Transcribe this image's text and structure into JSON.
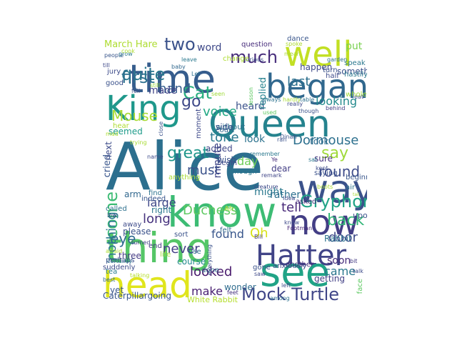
{
  "word_cloud": {
    "background": "#ffffff",
    "palette": "viridis",
    "words": [
      {
        "text": "Alice",
        "color": "#2c6f8e"
      },
      {
        "text": "know",
        "color": "#3dbc74"
      },
      {
        "text": "thing",
        "color": "#55c667"
      },
      {
        "text": "Queen",
        "color": "#25838e"
      },
      {
        "text": "head",
        "color": "#e0e51c"
      },
      {
        "text": "time",
        "color": "#365d8d"
      },
      {
        "text": "way",
        "color": "#3b528b"
      },
      {
        "text": "now",
        "color": "#433e85"
      },
      {
        "text": "Hatter",
        "color": "#414487"
      },
      {
        "text": "see",
        "color": "#20a386"
      },
      {
        "text": "well",
        "color": "#c2df23"
      },
      {
        "text": "King",
        "color": "#1f988b"
      },
      {
        "text": "began",
        "color": "#31688e"
      },
      {
        "text": "Mock Turtle",
        "color": "#404688"
      },
      {
        "text": "Gryphon",
        "color": "#20a386"
      },
      {
        "text": "quite",
        "color": "#2a788e"
      },
      {
        "text": "much",
        "color": "#472d7b"
      },
      {
        "text": "first",
        "color": "#2d708e"
      },
      {
        "text": "two",
        "color": "#3b528b"
      },
      {
        "text": "Cat",
        "color": "#29af7f"
      },
      {
        "text": "go",
        "color": "#3e4989"
      },
      {
        "text": "voice",
        "color": "#22a884"
      },
      {
        "text": "Dormouse",
        "color": "#2d708e"
      },
      {
        "text": "say",
        "color": "#9fda3a"
      },
      {
        "text": "round",
        "color": "#3e4c8a"
      },
      {
        "text": "Mouse",
        "color": "#a8db34"
      },
      {
        "text": "tone",
        "color": "#2a788e"
      },
      {
        "text": "come",
        "color": "#3dbc74"
      },
      {
        "text": "great",
        "color": "#1f968b"
      },
      {
        "text": "Duchess",
        "color": "#5ec962"
      },
      {
        "text": "tell",
        "color": "#472878"
      },
      {
        "text": "back",
        "color": "#35b779"
      },
      {
        "text": "looked",
        "color": "#481a6c"
      },
      {
        "text": "never",
        "color": "#433e85"
      },
      {
        "text": "door",
        "color": "#3e4a89"
      },
      {
        "text": "eye",
        "color": "#2f6c8e"
      },
      {
        "text": "long",
        "color": "#46327e"
      },
      {
        "text": "Oh",
        "color": "#d8e219"
      },
      {
        "text": "found",
        "color": "#39568c"
      },
      {
        "text": "make",
        "color": "#481f71"
      },
      {
        "text": "came",
        "color": "#2a788e"
      },
      {
        "text": "must",
        "color": "#3b528b"
      },
      {
        "text": "nothing",
        "color": "#2a788e"
      },
      {
        "text": "large",
        "color": "#3f4788"
      },
      {
        "text": "hand",
        "color": "#365d8d"
      },
      {
        "text": "last",
        "color": "#2d708e"
      },
      {
        "text": "looking",
        "color": "#238a8d"
      },
      {
        "text": "March Hare",
        "color": "#addc30"
      },
      {
        "text": "word",
        "color": "#3e4989"
      },
      {
        "text": "put",
        "color": "#7ad151"
      },
      {
        "text": "made",
        "color": "#414487"
      },
      {
        "text": "heard",
        "color": "#3b528b"
      },
      {
        "text": "replied",
        "color": "#26828e"
      },
      {
        "text": "minute",
        "color": "#404688"
      },
      {
        "text": "day",
        "color": "#6ece58"
      },
      {
        "text": "look",
        "color": "#2c728e"
      },
      {
        "text": "might",
        "color": "#2a788e"
      },
      {
        "text": "seemed",
        "color": "#1e9b8a"
      },
      {
        "text": "Caterpillargoing",
        "color": "#39568c"
      },
      {
        "text": "White Rabbit",
        "color": "#b5de2b"
      },
      {
        "text": "getting",
        "color": "#424086"
      },
      {
        "text": "Rabbit",
        "color": "#2c728e"
      },
      {
        "text": "course",
        "color": "#23898e"
      },
      {
        "text": "right",
        "color": "#2a788e"
      },
      {
        "text": "please",
        "color": "#3b528b"
      },
      {
        "text": "added",
        "color": "#404688"
      },
      {
        "text": "rather",
        "color": "#2d708e"
      },
      {
        "text": "Bill",
        "color": "#443a83"
      },
      {
        "text": "upon",
        "color": "#3b528b"
      },
      {
        "text": "without",
        "color": "#2c728e"
      },
      {
        "text": "took",
        "color": "#2f6c8e"
      },
      {
        "text": "sure",
        "color": "#46337e"
      },
      {
        "text": "soon",
        "color": "#472d7b"
      },
      {
        "text": "cried",
        "color": "#39568c"
      },
      {
        "text": "next",
        "color": "#3e4c8a"
      },
      {
        "text": "arm",
        "color": "#31688e"
      },
      {
        "text": "wish",
        "color": "#3b528b"
      },
      {
        "text": "dear",
        "color": "#433e85"
      },
      {
        "text": "begin",
        "color": "#3e4989"
      },
      {
        "text": "enough",
        "color": "#2a788e"
      },
      {
        "text": "sort",
        "color": "#3b528b"
      },
      {
        "text": "felt",
        "color": "#31688e"
      },
      {
        "text": "three",
        "color": "#443a83"
      },
      {
        "text": "suddenly",
        "color": "#3e4c8a"
      },
      {
        "text": "Footman",
        "color": "#472878"
      },
      {
        "text": "done",
        "color": "#31688e"
      },
      {
        "text": "tea",
        "color": "#287c8e"
      },
      {
        "text": "yet",
        "color": "#39568c"
      },
      {
        "text": "another",
        "color": "#472d7b"
      },
      {
        "text": "anxiously",
        "color": "#3e4989"
      },
      {
        "text": "gone",
        "color": "#3b528b"
      },
      {
        "text": "wonder",
        "color": "#2f6c8e"
      },
      {
        "text": "feet",
        "color": "#46337e"
      },
      {
        "text": "among",
        "color": "#2c728e"
      },
      {
        "text": "face",
        "color": "#5ec962"
      },
      {
        "text": "left",
        "color": "#3e4c8a"
      },
      {
        "text": "talking",
        "color": "#b5de2b"
      },
      {
        "text": "certainly",
        "color": "#2a788e"
      },
      {
        "text": "best",
        "color": "#31688e"
      },
      {
        "text": "turned",
        "color": "#414487"
      },
      {
        "text": "perhaps",
        "color": "#3b528b"
      },
      {
        "text": "called",
        "color": "#2d708e"
      },
      {
        "text": "low",
        "color": "#3e4989"
      },
      {
        "text": "indeed",
        "color": "#39568c"
      },
      {
        "text": "find",
        "color": "#2c728e"
      },
      {
        "text": "anything",
        "color": "#a8db34"
      },
      {
        "text": "away",
        "color": "#3e4c8a"
      },
      {
        "text": "end",
        "color": "#443a83"
      },
      {
        "text": "life",
        "color": "#9fda3a"
      },
      {
        "text": "use",
        "color": "#2d708e"
      },
      {
        "text": "everything",
        "color": "#3b528b"
      },
      {
        "text": "asked",
        "color": "#472d7b"
      },
      {
        "text": "Idea",
        "color": "#3e4989"
      },
      {
        "text": "sat",
        "color": "#2a788e"
      },
      {
        "text": "kept",
        "color": "#3e4c8a"
      },
      {
        "text": "saying",
        "color": "#3b528b"
      },
      {
        "text": "beginning",
        "color": "#39568c"
      },
      {
        "text": "air",
        "color": "#2c728e"
      },
      {
        "text": "tail",
        "color": "#a8db34"
      },
      {
        "text": "remember",
        "color": "#2a788e"
      },
      {
        "text": "remark",
        "color": "#404688"
      },
      {
        "text": "side",
        "color": "#3b528b"
      },
      {
        "text": "court",
        "color": "#31688e"
      },
      {
        "text": "moment",
        "color": "#3e4989"
      },
      {
        "text": "mean",
        "color": "#addc30"
      },
      {
        "text": "turn",
        "color": "#3b528b"
      },
      {
        "text": "speak",
        "color": "#2a788e"
      },
      {
        "text": "eat",
        "color": "#3e4c8a"
      },
      {
        "text": "whole",
        "color": "#9fda3a"
      },
      {
        "text": "behind",
        "color": "#433e85"
      },
      {
        "text": "though",
        "color": "#3b528b"
      },
      {
        "text": "really",
        "color": "#3e4989"
      },
      {
        "text": "table",
        "color": "#2d708e"
      },
      {
        "text": "hardly",
        "color": "#a8db34"
      },
      {
        "text": "something",
        "color": "#3b528b"
      },
      {
        "text": "half",
        "color": "#3e4c8a"
      },
      {
        "text": "hastily",
        "color": "#2a788e"
      },
      {
        "text": "garden",
        "color": "#2c728e"
      },
      {
        "text": "happen",
        "color": "#3e4989"
      },
      {
        "text": "spoke",
        "color": "#addc30"
      },
      {
        "text": "dance",
        "color": "#39568c"
      },
      {
        "text": "question",
        "color": "#472d7b"
      },
      {
        "text": "curious",
        "color": "#3b528b"
      },
      {
        "text": "leave",
        "color": "#2a788e"
      },
      {
        "text": "change",
        "color": "#addc30"
      },
      {
        "text": "Let",
        "color": "#2d708e"
      },
      {
        "text": "still",
        "color": "#9fda3a"
      },
      {
        "text": "baby",
        "color": "#31688e"
      },
      {
        "text": "jury",
        "color": "#3e4c8a"
      },
      {
        "text": "good",
        "color": "#3b528b"
      },
      {
        "text": "till",
        "color": "#3e4989"
      },
      {
        "text": "people",
        "color": "#39568c"
      },
      {
        "text": "grow",
        "color": "#2a788e"
      },
      {
        "text": "cook",
        "color": "#addc30"
      },
      {
        "text": "seen",
        "color": "#9fda3a"
      },
      {
        "text": "always",
        "color": "#2c728e"
      },
      {
        "text": "used",
        "color": "#5ec962"
      },
      {
        "text": "close",
        "color": "#3b528b"
      },
      {
        "text": "creature",
        "color": "#3e4989"
      },
      {
        "text": "Dinah",
        "color": "#3b528b"
      },
      {
        "text": "Ye",
        "color": "#472d7b"
      },
      {
        "text": "knew",
        "color": "#3e4989"
      },
      {
        "text": "Ah",
        "color": "#a8db34"
      },
      {
        "text": "bit",
        "color": "#443a83"
      },
      {
        "text": "talk",
        "color": "#3e4c8a"
      },
      {
        "text": "lesson",
        "color": "#5ec962"
      },
      {
        "text": "fell",
        "color": "#3b528b"
      },
      {
        "text": "trying",
        "color": "#a8db34"
      },
      {
        "text": "name",
        "color": "#3e4c8a"
      },
      {
        "text": "hear",
        "color": "#addc30"
      },
      {
        "text": "mad",
        "color": "#addc30"
      },
      {
        "text": "ran",
        "color": "#3b528b"
      },
      {
        "text": "boots",
        "color": "#addc30"
      },
      {
        "text": "afraid",
        "color": "#addc30"
      },
      {
        "text": "saw",
        "color": "#3e4989"
      }
    ]
  }
}
